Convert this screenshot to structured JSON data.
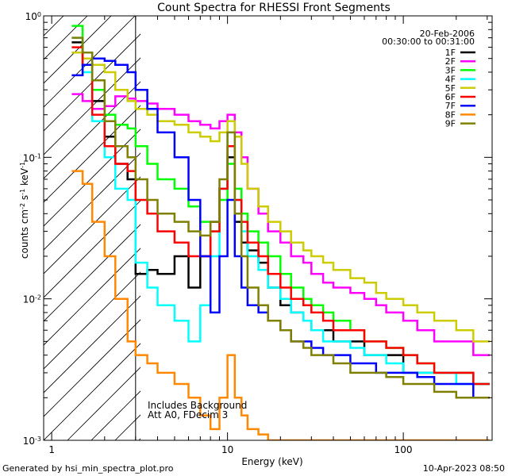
{
  "chart_data": {
    "type": "line",
    "title": "Count Spectra for RHESSI Front Segments",
    "xlabel": "Energy (keV)",
    "ylabel_main": "counts cm",
    "ylabel_exp1": "-2",
    "ylabel_mid": " s",
    "ylabel_exp2": "-1",
    "ylabel_end": " keV",
    "ylabel_exp3": "-1",
    "x_scale": "log",
    "y_scale": "log",
    "xlim": [
      0.9,
      320
    ],
    "ylim": [
      0.001,
      1.0
    ],
    "x_ticks": [
      {
        "value": 1,
        "label": "1"
      },
      {
        "value": 10,
        "label": "10"
      },
      {
        "value": 100,
        "label": "100"
      }
    ],
    "y_ticks": [
      {
        "value": 1,
        "base": "10",
        "exp": "0"
      },
      {
        "value": 0.1,
        "base": "10",
        "exp": "-1"
      },
      {
        "value": 0.01,
        "base": "10",
        "exp": "-2"
      },
      {
        "value": 0.001,
        "base": "10",
        "exp": "-3"
      }
    ],
    "hatch_limit_keV": 3,
    "date": "20-Feb-2006",
    "time_range": "00:30:00 to 00:31:00",
    "annotation_1": "Includes Background",
    "annotation_2": "Att A0, FDecim 3",
    "footer_left": "Generated by hsi_min_spectra_plot.pro",
    "footer_right": "10-Apr-2023 08:50",
    "energy_edges": [
      1.3,
      1.5,
      1.7,
      2.0,
      2.3,
      2.7,
      3.0,
      3.5,
      4.0,
      5.0,
      6.0,
      7.0,
      8.0,
      9.0,
      10.0,
      11.0,
      12.0,
      13.0,
      15.0,
      17.0,
      20.0,
      23.0,
      27.0,
      30.0,
      35.0,
      40.0,
      50.0,
      60.0,
      70.0,
      80.0,
      100.0,
      120.0,
      150.0,
      200.0,
      250.0,
      310.0
    ],
    "series": [
      {
        "name": "1F",
        "color": "#000000",
        "values": [
          0.65,
          0.45,
          0.25,
          0.14,
          0.09,
          0.07,
          0.015,
          0.016,
          0.015,
          0.02,
          0.012,
          0.02,
          0.035,
          0.06,
          0.1,
          0.035,
          0.025,
          0.022,
          0.018,
          0.012,
          0.009,
          0.008,
          0.007,
          0.006,
          0.006,
          0.005,
          0.005,
          0.004,
          0.004,
          0.004,
          0.003,
          0.003,
          0.003,
          0.003,
          0.0025
        ]
      },
      {
        "name": "2F",
        "color": "#ff00ff",
        "values": [
          0.28,
          0.25,
          0.22,
          0.23,
          0.27,
          0.26,
          0.25,
          0.24,
          0.22,
          0.2,
          0.18,
          0.17,
          0.16,
          0.18,
          0.2,
          0.15,
          0.1,
          0.06,
          0.04,
          0.03,
          0.025,
          0.02,
          0.018,
          0.015,
          0.013,
          0.012,
          0.011,
          0.01,
          0.009,
          0.008,
          0.007,
          0.006,
          0.005,
          0.005,
          0.004
        ]
      },
      {
        "name": "3F",
        "color": "#00ff00",
        "values": [
          0.85,
          0.55,
          0.3,
          0.2,
          0.17,
          0.16,
          0.12,
          0.09,
          0.07,
          0.06,
          0.045,
          0.035,
          0.03,
          0.05,
          0.09,
          0.06,
          0.04,
          0.03,
          0.025,
          0.02,
          0.015,
          0.012,
          0.01,
          0.009,
          0.008,
          0.007,
          0.006,
          0.005,
          0.005,
          0.0045,
          0.004,
          0.0035,
          0.003,
          0.003,
          0.0025
        ]
      },
      {
        "name": "4F",
        "color": "#00ffff",
        "values": [
          0.7,
          0.4,
          0.18,
          0.1,
          0.06,
          0.05,
          0.018,
          0.012,
          0.009,
          0.007,
          0.005,
          0.009,
          0.02,
          0.06,
          0.15,
          0.05,
          0.03,
          0.02,
          0.016,
          0.012,
          0.01,
          0.008,
          0.007,
          0.006,
          0.005,
          0.005,
          0.0045,
          0.004,
          0.004,
          0.0035,
          0.003,
          0.003,
          0.003,
          0.0025,
          0.0025
        ]
      },
      {
        "name": "5F",
        "color": "#cccc00",
        "values": [
          0.55,
          0.5,
          0.45,
          0.4,
          0.3,
          0.25,
          0.22,
          0.2,
          0.18,
          0.17,
          0.15,
          0.14,
          0.13,
          0.15,
          0.18,
          0.14,
          0.09,
          0.06,
          0.045,
          0.035,
          0.03,
          0.025,
          0.022,
          0.02,
          0.018,
          0.016,
          0.014,
          0.013,
          0.011,
          0.01,
          0.009,
          0.008,
          0.007,
          0.006,
          0.005
        ]
      },
      {
        "name": "6F",
        "color": "#ff0000",
        "values": [
          0.6,
          0.45,
          0.2,
          0.12,
          0.09,
          0.08,
          0.05,
          0.04,
          0.03,
          0.025,
          0.02,
          0.02,
          0.03,
          0.06,
          0.12,
          0.05,
          0.035,
          0.025,
          0.02,
          0.015,
          0.012,
          0.01,
          0.009,
          0.008,
          0.007,
          0.006,
          0.006,
          0.005,
          0.005,
          0.0045,
          0.004,
          0.0035,
          0.003,
          0.003,
          0.0025
        ]
      },
      {
        "name": "7F",
        "color": "#0000ff",
        "values": [
          0.38,
          0.45,
          0.5,
          0.48,
          0.45,
          0.4,
          0.3,
          0.22,
          0.15,
          0.1,
          0.05,
          0.02,
          0.008,
          0.02,
          0.05,
          0.02,
          0.012,
          0.009,
          0.008,
          0.007,
          0.006,
          0.005,
          0.005,
          0.0045,
          0.004,
          0.004,
          0.0035,
          0.0035,
          0.003,
          0.003,
          0.003,
          0.0028,
          0.0025,
          0.0025,
          0.002
        ]
      },
      {
        "name": "8F",
        "color": "#ff8800",
        "values": [
          0.08,
          0.065,
          0.035,
          0.02,
          0.01,
          0.005,
          0.004,
          0.0035,
          0.003,
          0.0025,
          0.002,
          0.0015,
          0.0012,
          0.002,
          0.004,
          0.002,
          0.0015,
          0.0012,
          0.0011,
          0.001,
          0.001,
          0.001,
          0.001,
          0.001,
          0.001,
          0.001,
          0.001,
          0.001,
          0.001,
          0.001,
          0.001,
          0.001,
          0.001,
          0.001,
          0.001
        ]
      },
      {
        "name": "9F",
        "color": "#808000",
        "values": [
          0.7,
          0.55,
          0.35,
          0.18,
          0.12,
          0.1,
          0.07,
          0.05,
          0.04,
          0.035,
          0.03,
          0.028,
          0.035,
          0.07,
          0.15,
          0.04,
          0.02,
          0.012,
          0.009,
          0.007,
          0.006,
          0.005,
          0.0045,
          0.004,
          0.004,
          0.0035,
          0.003,
          0.003,
          0.003,
          0.0028,
          0.0025,
          0.0025,
          0.0022,
          0.002,
          0.002
        ]
      }
    ]
  }
}
